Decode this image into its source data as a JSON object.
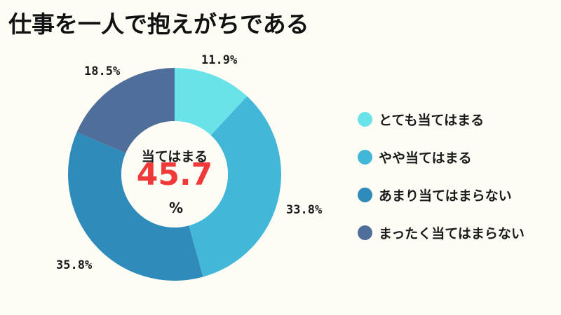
{
  "title": "仕事を一人で抱えがちである",
  "center": {
    "label": "当てはまる",
    "value": "45.7",
    "unit": "%"
  },
  "legend": [
    {
      "label": "とても当てはまる",
      "color": "#6ae3e8"
    },
    {
      "label": "やや当てはまる",
      "color": "#43b7d7"
    },
    {
      "label": "あまり当てはまらない",
      "color": "#2f8bba"
    },
    {
      "label": "まったく当てはまらない",
      "color": "#506e9a"
    }
  ],
  "labels": [
    "11.9%",
    "33.8%",
    "35.8%",
    "18.5%"
  ],
  "chart_data": {
    "type": "pie",
    "subtype": "donut",
    "title": "仕事を一人で抱えがちである",
    "categories": [
      "とても当てはまる",
      "やや当てはまる",
      "あまり当てはまらない",
      "まったく当てはまらない"
    ],
    "values": [
      11.9,
      33.8,
      35.8,
      18.5
    ],
    "unit": "%",
    "colors": [
      "#6ae3e8",
      "#43b7d7",
      "#2f8bba",
      "#506e9a"
    ],
    "start_angle": "12 o'clock",
    "direction": "clockwise",
    "center_annotation": {
      "label": "当てはまる",
      "value": 45.7,
      "unit": "%"
    },
    "legend_position": "right"
  }
}
